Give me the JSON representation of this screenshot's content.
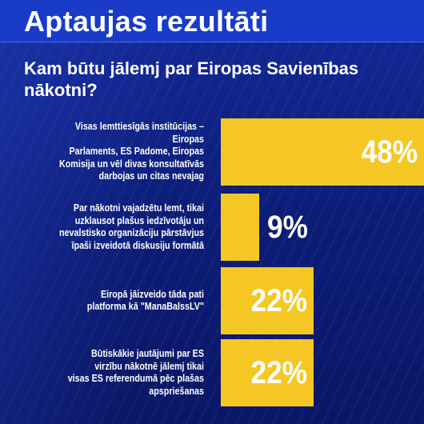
{
  "header": {
    "title": "Aptaujas rezultāti"
  },
  "question": "Kam būtu jālemj par Eiropas Savienības nākotni?",
  "chart_data": {
    "type": "bar",
    "orientation": "horizontal",
    "title": "Kam būtu jālemj par Eiropas Savienības nākotni?",
    "categories": [
      "Visas lemttiesīgās institūcijas – Eiropas Parlaments, ES Padome, Eiropas Komisija un vēl divas konsultatīvās darbojas un citas nevajag",
      "Par nākotni vajadzētu lemt, tikai uzklausot plašus iedzīvotāju un nevalstisko organizāciju pārstāvjus īpaši izveidotā diskusiju formātā",
      "Eiropā jāizveido tāda pati platforma kā \"ManaBalssLV\"",
      "Būtiskākie jautājumi par ES virzību nākotnē jālemj tikai visas ES referendumā pēc plašas apspriešanas"
    ],
    "category_lines": [
      [
        "Visas lemttiesīgās institūcijas – Eiropas",
        "Parlaments, ES Padome, Eiropas",
        "Komisija un vēl divas konsultatīvās",
        "darbojas un citas nevajag"
      ],
      [
        "Par nākotni vajadzētu lemt, tikai",
        "uzklausot plašus iedzīvotāju un",
        "nevalstisko organizāciju pārstāvjus",
        "īpaši izveidotā diskusiju formātā"
      ],
      [
        "Eiropā jāizveido tāda pati",
        "platforma kā \"ManaBalssLV\""
      ],
      [
        "Būtiskākie jautājumi par ES",
        "virzību nākotnē jālemj tikai",
        "visas ES referendumā pēc plašas",
        "apspriešanas"
      ]
    ],
    "values": [
      48,
      9,
      22,
      22
    ],
    "value_labels": [
      "48%",
      "9%",
      "22%",
      "22%"
    ],
    "unit": "%",
    "xlim": [
      0,
      48
    ],
    "bar_color": "#f5c724"
  },
  "colors": {
    "title_bar": "#1a3bc8",
    "background": "#0c1d78",
    "bar": "#f5c724",
    "text": "#ffffff"
  }
}
